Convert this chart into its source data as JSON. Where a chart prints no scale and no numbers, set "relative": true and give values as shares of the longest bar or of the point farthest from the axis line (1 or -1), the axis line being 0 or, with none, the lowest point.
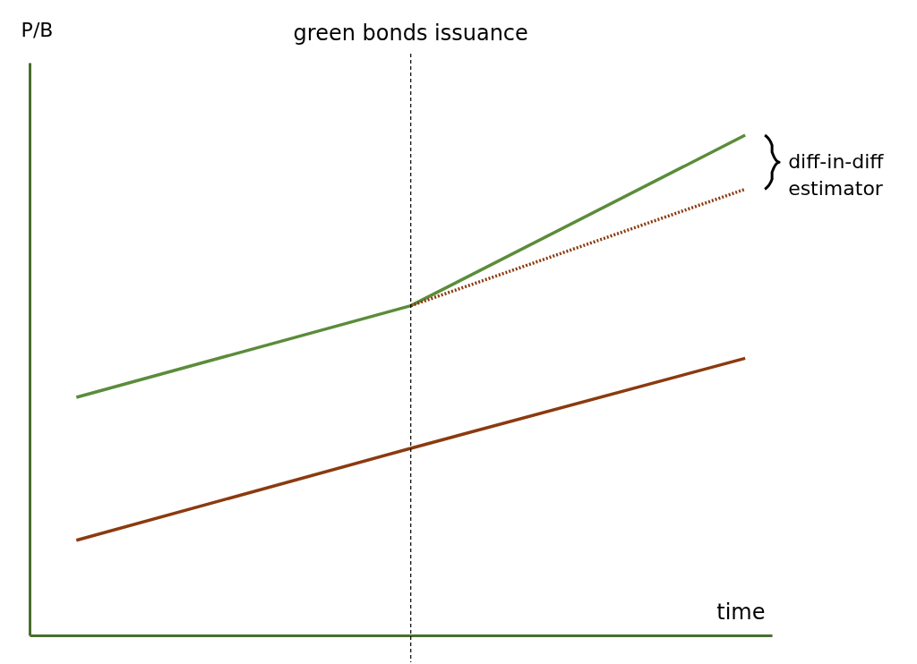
{
  "chart_data": {
    "type": "line",
    "relative": true,
    "xlabel": "time",
    "ylabel": "P/B",
    "categories": [
      null,
      null,
      null
    ],
    "series": [
      {
        "color": "#5b8c3a",
        "values": [
          0.476,
          0.659,
          1.0
        ]
      },
      {
        "color": "#8b3a0f",
        "values": [
          null,
          0.659,
          0.892
        ],
        "line_style": "dotted"
      },
      {
        "color": "#8b3a0f",
        "values": [
          0.19,
          0.374,
          0.554
        ]
      }
    ],
    "annotations": [
      "green bonds issuance",
      "diff-in-diff\nestimator"
    ],
    "marker": "none"
  }
}
